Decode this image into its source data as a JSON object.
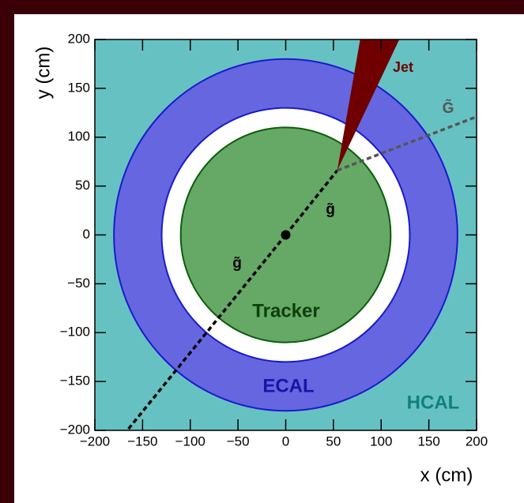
{
  "chart_data": {
    "type": "detector",
    "xlabel": "x (cm)",
    "ylabel": "y (cm)",
    "xlim": [
      -200,
      200
    ],
    "ylim": [
      -200,
      200
    ],
    "xticks": [
      {
        "value": -200,
        "label": "−200"
      },
      {
        "value": -150,
        "label": "−150"
      },
      {
        "value": -100,
        "label": "−100"
      },
      {
        "value": -50,
        "label": "−50"
      },
      0,
      50,
      100,
      150,
      200
    ],
    "yticks": [
      {
        "value": -200,
        "label": "−200"
      },
      {
        "value": -150,
        "label": "−150"
      },
      {
        "value": -100,
        "label": "−100"
      },
      {
        "value": -50,
        "label": "−50"
      },
      0,
      50,
      100,
      150,
      200
    ],
    "background": {
      "name": "HCAL",
      "color": "#66c2c2"
    },
    "regions": [
      {
        "name": "ECAL",
        "inner_radius": 130,
        "outer_radius": 180,
        "color": "#6666e0",
        "edge_color": "#1a1acc"
      },
      {
        "name": "Tracker",
        "outer_radius": 110,
        "color": "#66a866",
        "edge_color": "#0b5e0b"
      }
    ],
    "vertex": {
      "x": 0,
      "y": 0
    },
    "tracks": [
      {
        "name": "g̃",
        "x": [
          0,
          -166
        ],
        "y": [
          0,
          -200
        ],
        "color": "#000000"
      },
      {
        "name": "g̃",
        "x": [
          0,
          54
        ],
        "y": [
          0,
          66
        ],
        "color": "#000000"
      },
      {
        "name": "G̃",
        "x": [
          54,
          200
        ],
        "y": [
          66,
          121
        ],
        "color": "#555555"
      }
    ],
    "jet": {
      "name": "Jet",
      "x": [
        54,
        78,
        119
      ],
      "y": [
        66,
        200,
        200
      ],
      "color": "#700000"
    }
  }
}
